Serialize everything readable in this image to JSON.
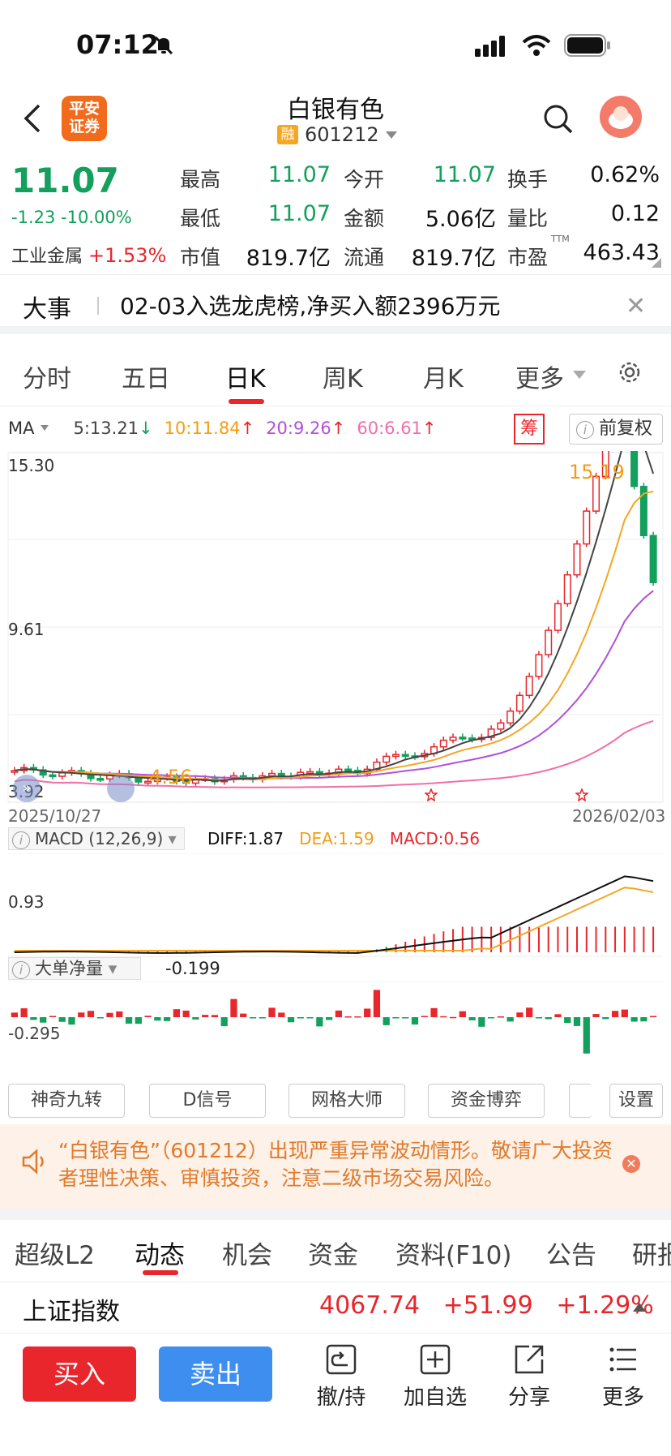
{
  "status_bar": {
    "time": "07:12"
  },
  "header": {
    "logo_text_line1": "平安",
    "logo_text_line2": "证券",
    "stock_name": "白银有色",
    "rong_badge": "融",
    "stock_code": "601212"
  },
  "quote": {
    "price": "11.07",
    "change": "-1.23 -10.00%",
    "sector_label": "工业金属",
    "sector_change": "+1.53%",
    "cells": [
      {
        "label": "最高",
        "value": "11.07",
        "tone": "green"
      },
      {
        "label": "今开",
        "value": "11.07",
        "tone": "green"
      },
      {
        "label": "换手",
        "value": "0.62%",
        "tone": "dark"
      },
      {
        "label": "最低",
        "value": "11.07",
        "tone": "green"
      },
      {
        "label": "金额",
        "value": "5.06亿",
        "tone": "dark"
      },
      {
        "label": "量比",
        "value": "0.12",
        "tone": "dark"
      },
      {
        "label": "市值",
        "value": "819.7亿",
        "tone": "dark"
      },
      {
        "label": "流通",
        "value": "819.7亿",
        "tone": "dark"
      },
      {
        "label": "市盈",
        "value": "463.43",
        "tone": "dark"
      }
    ],
    "ttm": "TTM"
  },
  "event": {
    "title": "大事",
    "text": "02-03入选龙虎榜,净买入额2396万元"
  },
  "chart_tabs": [
    {
      "label": "分时"
    },
    {
      "label": "五日"
    },
    {
      "label": "日K"
    },
    {
      "label": "周K"
    },
    {
      "label": "月K"
    },
    {
      "label": "更多"
    }
  ],
  "ma_legend": {
    "ma": "MA",
    "ma5": "5:13.21",
    "ma10": "10:11.84",
    "ma20": "20:9.26",
    "ma60": "60:6.61",
    "chou": "筹",
    "fuquan": "前复权"
  },
  "colors": {
    "up": "#e8262c",
    "down": "#12a05c",
    "ma5": "#444444",
    "ma10": "#f5a623",
    "ma20": "#b150d8",
    "ma60": "#f06faa"
  },
  "chart_data": {
    "type": "candlestick",
    "y_ticks": [
      "15.30",
      "9.61",
      "3.92"
    ],
    "x_start": "2025/10/27",
    "x_end": "2026/02/03",
    "high_annotation": "15.19",
    "low_annotation": "4.56",
    "ylim": [
      3.92,
      15.3
    ],
    "macd": {
      "label": "MACD (12,26,9)",
      "diff": "DIFF:1.87",
      "dea": "DEA:1.59",
      "macd": "MACD:0.56",
      "tick": "0.93"
    },
    "big_order": {
      "label": "大单净量",
      "value": "-0.199",
      "tick": "-0.295"
    }
  },
  "tools": [
    {
      "label": "神奇九转"
    },
    {
      "label": "D信号"
    },
    {
      "label": "网格大师"
    },
    {
      "label": "资金博弈"
    },
    {
      "label": "设置"
    }
  ],
  "warning": {
    "text": "“白银有色”（601212）出现严重异常波动情形。敬请广大投资者理性决策、审慎投资，注意二级市场交易风险。"
  },
  "bottom_tabs": [
    {
      "label": "超级L2"
    },
    {
      "label": "动态"
    },
    {
      "label": "机会"
    },
    {
      "label": "资金"
    },
    {
      "label": "资料(F10)"
    },
    {
      "label": "公告"
    },
    {
      "label": "研报"
    }
  ],
  "index": {
    "name": "上证指数",
    "value": "4067.74",
    "change": "+51.99",
    "pct": "+1.29%"
  },
  "actions": {
    "buy": "买入",
    "sell": "卖出",
    "items": [
      {
        "label": "撤/持"
      },
      {
        "label": "加自选"
      },
      {
        "label": "分享"
      },
      {
        "label": "更多"
      }
    ]
  }
}
